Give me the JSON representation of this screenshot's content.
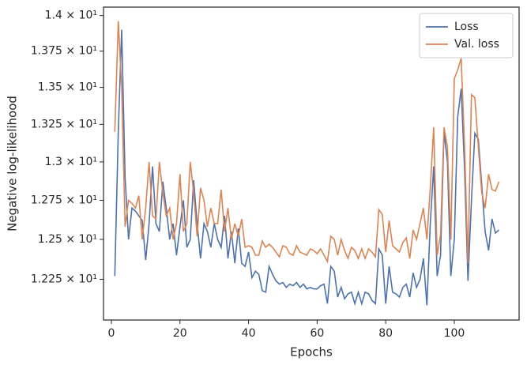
{
  "chart_data": {
    "type": "line",
    "x_label": "Epochs",
    "y_label": "Negative log-likelihood",
    "x": [
      1,
      2,
      3,
      4,
      5,
      6,
      7,
      8,
      9,
      10,
      11,
      12,
      13,
      14,
      15,
      16,
      17,
      18,
      19,
      20,
      21,
      22,
      23,
      24,
      25,
      26,
      27,
      28,
      29,
      30,
      31,
      32,
      33,
      34,
      35,
      36,
      37,
      38,
      39,
      40,
      41,
      42,
      43,
      44,
      45,
      46,
      47,
      48,
      49,
      50,
      51,
      52,
      53,
      54,
      55,
      56,
      57,
      58,
      59,
      60,
      61,
      62,
      63,
      64,
      65,
      66,
      67,
      68,
      69,
      70,
      71,
      72,
      73,
      74,
      75,
      76,
      77,
      78,
      79,
      80,
      81,
      82,
      83,
      84,
      85,
      86,
      87,
      88,
      89,
      90,
      91,
      92,
      93,
      94,
      95,
      96,
      97,
      98,
      99,
      100,
      101,
      102,
      103,
      104,
      105,
      106,
      107,
      108,
      109,
      110,
      111,
      112,
      113
    ],
    "series": [
      {
        "name": "Loss",
        "color": "#4c72b0",
        "values": [
          12.27,
          13.2,
          13.9,
          12.9,
          12.5,
          12.7,
          12.68,
          12.65,
          12.62,
          12.37,
          12.6,
          12.97,
          12.6,
          12.55,
          12.87,
          12.7,
          12.5,
          12.6,
          12.4,
          12.58,
          12.75,
          12.45,
          12.5,
          12.88,
          12.6,
          12.38,
          12.6,
          12.55,
          12.45,
          12.6,
          12.5,
          12.45,
          12.65,
          12.38,
          12.55,
          12.35,
          12.57,
          12.35,
          12.33,
          12.42,
          12.26,
          12.3,
          12.28,
          12.18,
          12.17,
          12.33,
          12.28,
          12.24,
          12.22,
          12.23,
          12.2,
          12.22,
          12.21,
          12.23,
          12.2,
          12.22,
          12.19,
          12.2,
          12.19,
          12.19,
          12.21,
          12.22,
          12.1,
          12.33,
          12.3,
          12.14,
          12.2,
          12.13,
          12.16,
          12.17,
          12.1,
          12.17,
          12.1,
          12.17,
          12.16,
          12.12,
          12.1,
          12.44,
          12.4,
          12.1,
          12.33,
          12.17,
          12.16,
          12.14,
          12.2,
          12.22,
          12.14,
          12.29,
          12.2,
          12.25,
          12.38,
          12.09,
          12.6,
          12.97,
          12.27,
          12.4,
          13.2,
          13.0,
          12.27,
          12.5,
          13.3,
          13.49,
          12.95,
          12.24,
          12.75,
          13.19,
          13.15,
          12.85,
          12.55,
          12.43,
          12.63,
          12.54,
          12.56
        ]
      },
      {
        "name": "Val. loss",
        "color": "#dd8452",
        "values": [
          13.2,
          13.96,
          13.5,
          12.58,
          12.75,
          12.73,
          12.7,
          12.78,
          12.5,
          12.7,
          13.0,
          12.65,
          12.63,
          13.0,
          12.8,
          12.65,
          12.7,
          12.5,
          12.6,
          12.92,
          12.55,
          12.6,
          13.0,
          12.8,
          12.52,
          12.83,
          12.75,
          12.58,
          12.7,
          12.6,
          12.6,
          12.82,
          12.55,
          12.7,
          12.5,
          12.6,
          12.52,
          12.63,
          12.45,
          12.46,
          12.45,
          12.4,
          12.4,
          12.49,
          12.45,
          12.47,
          12.45,
          12.42,
          12.39,
          12.46,
          12.45,
          12.41,
          12.4,
          12.46,
          12.42,
          12.41,
          12.4,
          12.44,
          12.43,
          12.41,
          12.44,
          12.4,
          12.36,
          12.52,
          12.5,
          12.4,
          12.5,
          12.43,
          12.38,
          12.45,
          12.43,
          12.38,
          12.44,
          12.38,
          12.44,
          12.42,
          12.39,
          12.69,
          12.66,
          12.42,
          12.62,
          12.46,
          12.44,
          12.42,
          12.48,
          12.51,
          12.38,
          12.56,
          12.5,
          12.6,
          12.7,
          12.5,
          12.83,
          13.23,
          12.4,
          12.53,
          13.23,
          13.1,
          12.5,
          13.56,
          13.62,
          13.7,
          13.1,
          12.35,
          13.45,
          13.43,
          13.1,
          12.8,
          12.7,
          12.92,
          12.82,
          12.81,
          12.87
        ]
      }
    ],
    "xlim": [
      -2.3,
      118.9
    ],
    "ylim": [
      12.0,
      14.06
    ],
    "y_log_scale": true,
    "xticks": [
      0,
      20,
      40,
      60,
      80,
      100
    ],
    "yticks": [
      {
        "value": 12.25,
        "label": "1.225 × 10¹"
      },
      {
        "value": 12.5,
        "label": "1.25 × 10¹"
      },
      {
        "value": 12.75,
        "label": "1.275 × 10¹"
      },
      {
        "value": 13,
        "label": "1.3 × 10¹"
      },
      {
        "value": 13.25,
        "label": "1.325 × 10¹"
      },
      {
        "value": 13.5,
        "label": "1.35 × 10¹"
      },
      {
        "value": 13.75,
        "label": "1.375 × 10¹"
      },
      {
        "value": 14,
        "label": "1.4 × 10¹"
      }
    ],
    "legend_position": "upper-right"
  }
}
